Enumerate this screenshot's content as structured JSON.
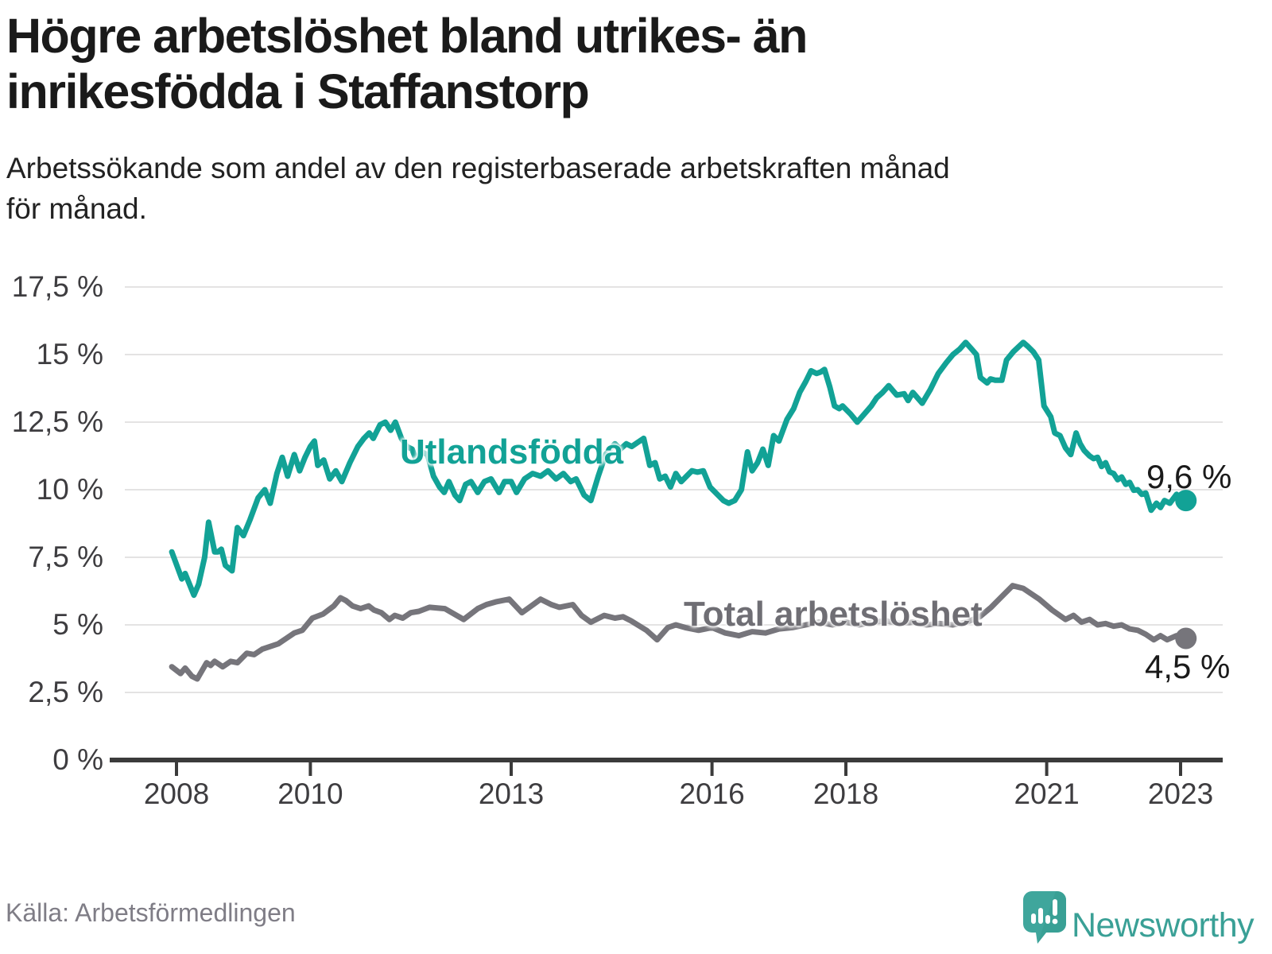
{
  "header": {
    "title": "Högre arbetslöshet bland utrikes- än\ninrikesfödda i Staffanstorp",
    "subtitle": "Arbetssökande som andel av den registerbaserade arbetskraften månad\nför månad."
  },
  "footer": {
    "source": "Källa: Arbetsförmedlingen"
  },
  "logo": {
    "name": "Newsworthy",
    "icon": "newsworthy-speech-bubble-chart-icon",
    "text_color": "#3aa096",
    "icon_color": "#3fa69c"
  },
  "chart_data": {
    "type": "line",
    "x_unit": "decimal_year",
    "y_unit": "percent_of_labour_force",
    "grid": "horizontal",
    "legend_position": "inline-labels",
    "xlim": [
      2007.3,
      2023.6
    ],
    "ylim": [
      0,
      18.5
    ],
    "x_ticks": {
      "values": [
        2008,
        2010,
        2013,
        2016,
        2018,
        2021,
        2023
      ],
      "labels": [
        "2008",
        "2010",
        "2013",
        "2016",
        "2018",
        "2021",
        "2023"
      ]
    },
    "y_ticks": {
      "values": [
        0,
        2.5,
        5,
        7.5,
        10,
        12.5,
        15,
        17.5
      ],
      "labels": [
        "0 %",
        "2,5 %",
        "5 %",
        "7,5 %",
        "10 %",
        "12,5 %",
        "15 %",
        "17,5 %"
      ]
    },
    "series": [
      {
        "name": "Utlandsfödda",
        "color": "#12a296",
        "end_label": "9,6 %",
        "end_value": 9.6,
        "points": [
          [
            2007.93,
            7.7
          ],
          [
            2008.08,
            6.7
          ],
          [
            2008.13,
            6.9
          ],
          [
            2008.26,
            6.1
          ],
          [
            2008.33,
            6.5
          ],
          [
            2008.42,
            7.5
          ],
          [
            2008.48,
            8.8
          ],
          [
            2008.57,
            7.7
          ],
          [
            2008.62,
            7.7
          ],
          [
            2008.67,
            7.8
          ],
          [
            2008.73,
            7.2
          ],
          [
            2008.83,
            7.0
          ],
          [
            2008.91,
            8.6
          ],
          [
            2009.0,
            8.3
          ],
          [
            2009.1,
            8.9
          ],
          [
            2009.22,
            9.7
          ],
          [
            2009.32,
            10.0
          ],
          [
            2009.4,
            9.5
          ],
          [
            2009.5,
            10.6
          ],
          [
            2009.58,
            11.2
          ],
          [
            2009.66,
            10.5
          ],
          [
            2009.76,
            11.3
          ],
          [
            2009.84,
            10.7
          ],
          [
            2009.92,
            11.2
          ],
          [
            2010.0,
            11.6
          ],
          [
            2010.06,
            11.8
          ],
          [
            2010.11,
            10.9
          ],
          [
            2010.2,
            11.1
          ],
          [
            2010.29,
            10.4
          ],
          [
            2010.38,
            10.7
          ],
          [
            2010.47,
            10.3
          ],
          [
            2010.59,
            11.0
          ],
          [
            2010.71,
            11.6
          ],
          [
            2010.8,
            11.9
          ],
          [
            2010.88,
            12.1
          ],
          [
            2010.94,
            11.9
          ],
          [
            2011.04,
            12.4
          ],
          [
            2011.12,
            12.5
          ],
          [
            2011.2,
            12.2
          ],
          [
            2011.27,
            12.5
          ],
          [
            2011.36,
            11.9
          ],
          [
            2011.44,
            11.6
          ],
          [
            2011.52,
            11.5
          ],
          [
            2011.58,
            11.1
          ],
          [
            2011.66,
            11.4
          ],
          [
            2011.75,
            11.3
          ],
          [
            2011.84,
            10.5
          ],
          [
            2011.93,
            10.1
          ],
          [
            2012.0,
            9.9
          ],
          [
            2012.07,
            10.3
          ],
          [
            2012.16,
            9.8
          ],
          [
            2012.23,
            9.6
          ],
          [
            2012.32,
            10.2
          ],
          [
            2012.4,
            10.3
          ],
          [
            2012.5,
            9.9
          ],
          [
            2012.6,
            10.3
          ],
          [
            2012.7,
            10.4
          ],
          [
            2012.82,
            9.9
          ],
          [
            2012.9,
            10.3
          ],
          [
            2013.0,
            10.3
          ],
          [
            2013.08,
            9.9
          ],
          [
            2013.2,
            10.4
          ],
          [
            2013.32,
            10.6
          ],
          [
            2013.44,
            10.5
          ],
          [
            2013.55,
            10.7
          ],
          [
            2013.67,
            10.4
          ],
          [
            2013.78,
            10.6
          ],
          [
            2013.89,
            10.3
          ],
          [
            2013.97,
            10.4
          ],
          [
            2014.09,
            9.8
          ],
          [
            2014.19,
            9.6
          ],
          [
            2014.3,
            10.5
          ],
          [
            2014.41,
            11.3
          ],
          [
            2014.55,
            11.7
          ],
          [
            2014.63,
            11.5
          ],
          [
            2014.72,
            11.7
          ],
          [
            2014.8,
            11.6
          ],
          [
            2014.89,
            11.75
          ],
          [
            2014.98,
            11.9
          ],
          [
            2015.07,
            10.9
          ],
          [
            2015.15,
            11.0
          ],
          [
            2015.22,
            10.4
          ],
          [
            2015.3,
            10.5
          ],
          [
            2015.38,
            10.1
          ],
          [
            2015.46,
            10.6
          ],
          [
            2015.54,
            10.3
          ],
          [
            2015.62,
            10.5
          ],
          [
            2015.7,
            10.7
          ],
          [
            2015.78,
            10.65
          ],
          [
            2015.87,
            10.7
          ],
          [
            2015.97,
            10.1
          ],
          [
            2016.09,
            9.8
          ],
          [
            2016.17,
            9.6
          ],
          [
            2016.25,
            9.5
          ],
          [
            2016.34,
            9.6
          ],
          [
            2016.44,
            10.0
          ],
          [
            2016.53,
            11.4
          ],
          [
            2016.6,
            10.7
          ],
          [
            2016.68,
            11.0
          ],
          [
            2016.76,
            11.5
          ],
          [
            2016.84,
            10.9
          ],
          [
            2016.92,
            12.0
          ],
          [
            2017.0,
            11.8
          ],
          [
            2017.12,
            12.6
          ],
          [
            2017.22,
            13.0
          ],
          [
            2017.31,
            13.6
          ],
          [
            2017.4,
            14.0
          ],
          [
            2017.48,
            14.4
          ],
          [
            2017.56,
            14.3
          ],
          [
            2017.62,
            14.35
          ],
          [
            2017.68,
            14.45
          ],
          [
            2017.76,
            13.8
          ],
          [
            2017.83,
            13.1
          ],
          [
            2017.9,
            13.0
          ],
          [
            2017.95,
            13.1
          ],
          [
            2018.07,
            12.8
          ],
          [
            2018.17,
            12.5
          ],
          [
            2018.31,
            12.9
          ],
          [
            2018.38,
            13.1
          ],
          [
            2018.46,
            13.4
          ],
          [
            2018.55,
            13.6
          ],
          [
            2018.64,
            13.85
          ],
          [
            2018.76,
            13.5
          ],
          [
            2018.87,
            13.55
          ],
          [
            2018.93,
            13.3
          ],
          [
            2019.0,
            13.6
          ],
          [
            2019.07,
            13.4
          ],
          [
            2019.14,
            13.2
          ],
          [
            2019.26,
            13.7
          ],
          [
            2019.38,
            14.3
          ],
          [
            2019.5,
            14.7
          ],
          [
            2019.6,
            15.0
          ],
          [
            2019.7,
            15.2
          ],
          [
            2019.79,
            15.45
          ],
          [
            2019.88,
            15.2
          ],
          [
            2019.95,
            15.0
          ],
          [
            2020.01,
            14.15
          ],
          [
            2020.11,
            13.95
          ],
          [
            2020.16,
            14.1
          ],
          [
            2020.23,
            14.05
          ],
          [
            2020.33,
            14.05
          ],
          [
            2020.4,
            14.8
          ],
          [
            2020.5,
            15.1
          ],
          [
            2020.65,
            15.45
          ],
          [
            2020.72,
            15.3
          ],
          [
            2020.8,
            15.1
          ],
          [
            2020.88,
            14.8
          ],
          [
            2020.96,
            13.1
          ],
          [
            2021.06,
            12.7
          ],
          [
            2021.12,
            12.1
          ],
          [
            2021.2,
            12.0
          ],
          [
            2021.28,
            11.55
          ],
          [
            2021.36,
            11.3
          ],
          [
            2021.44,
            12.1
          ],
          [
            2021.5,
            11.7
          ],
          [
            2021.56,
            11.45
          ],
          [
            2021.64,
            11.25
          ],
          [
            2021.7,
            11.15
          ],
          [
            2021.76,
            11.2
          ],
          [
            2021.82,
            10.86
          ],
          [
            2021.88,
            11.0
          ],
          [
            2021.94,
            10.66
          ],
          [
            2022.0,
            10.6
          ],
          [
            2022.06,
            10.37
          ],
          [
            2022.12,
            10.47
          ],
          [
            2022.18,
            10.2
          ],
          [
            2022.24,
            10.27
          ],
          [
            2022.3,
            9.98
          ],
          [
            2022.36,
            10.0
          ],
          [
            2022.42,
            9.83
          ],
          [
            2022.48,
            9.88
          ],
          [
            2022.56,
            9.24
          ],
          [
            2022.64,
            9.5
          ],
          [
            2022.7,
            9.34
          ],
          [
            2022.76,
            9.6
          ],
          [
            2022.84,
            9.5
          ],
          [
            2022.94,
            9.83
          ],
          [
            2023.0,
            9.45
          ],
          [
            2023.08,
            9.6
          ]
        ]
      },
      {
        "name": "Total arbetslöshet",
        "color": "#76757b",
        "end_label": "4,5 %",
        "end_value": 4.5,
        "points": [
          [
            2007.93,
            3.45
          ],
          [
            2008.06,
            3.2
          ],
          [
            2008.13,
            3.4
          ],
          [
            2008.23,
            3.1
          ],
          [
            2008.31,
            3.0
          ],
          [
            2008.45,
            3.6
          ],
          [
            2008.51,
            3.5
          ],
          [
            2008.57,
            3.65
          ],
          [
            2008.69,
            3.45
          ],
          [
            2008.81,
            3.65
          ],
          [
            2008.91,
            3.6
          ],
          [
            2009.05,
            3.95
          ],
          [
            2009.16,
            3.9
          ],
          [
            2009.28,
            4.1
          ],
          [
            2009.4,
            4.2
          ],
          [
            2009.52,
            4.3
          ],
          [
            2009.64,
            4.5
          ],
          [
            2009.76,
            4.7
          ],
          [
            2009.88,
            4.8
          ],
          [
            2010.03,
            5.25
          ],
          [
            2010.19,
            5.4
          ],
          [
            2010.27,
            5.55
          ],
          [
            2010.35,
            5.7
          ],
          [
            2010.45,
            6.0
          ],
          [
            2010.53,
            5.9
          ],
          [
            2010.63,
            5.7
          ],
          [
            2010.75,
            5.6
          ],
          [
            2010.87,
            5.7
          ],
          [
            2010.95,
            5.55
          ],
          [
            2011.06,
            5.45
          ],
          [
            2011.18,
            5.2
          ],
          [
            2011.26,
            5.35
          ],
          [
            2011.38,
            5.25
          ],
          [
            2011.5,
            5.45
          ],
          [
            2011.62,
            5.5
          ],
          [
            2011.78,
            5.65
          ],
          [
            2012.01,
            5.6
          ],
          [
            2012.29,
            5.2
          ],
          [
            2012.5,
            5.6
          ],
          [
            2012.63,
            5.75
          ],
          [
            2012.77,
            5.85
          ],
          [
            2012.97,
            5.95
          ],
          [
            2013.16,
            5.45
          ],
          [
            2013.3,
            5.7
          ],
          [
            2013.44,
            5.95
          ],
          [
            2013.6,
            5.75
          ],
          [
            2013.72,
            5.65
          ],
          [
            2013.92,
            5.75
          ],
          [
            2014.05,
            5.35
          ],
          [
            2014.19,
            5.1
          ],
          [
            2014.39,
            5.35
          ],
          [
            2014.55,
            5.25
          ],
          [
            2014.67,
            5.3
          ],
          [
            2014.79,
            5.15
          ],
          [
            2015.02,
            4.8
          ],
          [
            2015.18,
            4.45
          ],
          [
            2015.34,
            4.9
          ],
          [
            2015.46,
            5.0
          ],
          [
            2015.6,
            4.9
          ],
          [
            2015.8,
            4.8
          ],
          [
            2016.0,
            4.9
          ],
          [
            2016.2,
            4.7
          ],
          [
            2016.4,
            4.6
          ],
          [
            2016.6,
            4.75
          ],
          [
            2016.8,
            4.7
          ],
          [
            2017.0,
            4.85
          ],
          [
            2017.2,
            4.9
          ],
          [
            2017.4,
            5.0
          ],
          [
            2017.6,
            5.1
          ],
          [
            2017.8,
            5.0
          ],
          [
            2018.0,
            5.1
          ],
          [
            2018.2,
            5.0
          ],
          [
            2018.4,
            5.1
          ],
          [
            2018.6,
            5.15
          ],
          [
            2018.8,
            5.05
          ],
          [
            2019.0,
            5.1
          ],
          [
            2019.2,
            5.0
          ],
          [
            2019.4,
            5.05
          ],
          [
            2019.6,
            5.0
          ],
          [
            2019.8,
            5.1
          ],
          [
            2020.0,
            5.3
          ],
          [
            2020.17,
            5.65
          ],
          [
            2020.29,
            5.95
          ],
          [
            2020.49,
            6.45
          ],
          [
            2020.65,
            6.35
          ],
          [
            2020.89,
            5.95
          ],
          [
            2021.08,
            5.55
          ],
          [
            2021.28,
            5.2
          ],
          [
            2021.4,
            5.35
          ],
          [
            2021.52,
            5.1
          ],
          [
            2021.64,
            5.2
          ],
          [
            2021.76,
            5.0
          ],
          [
            2021.88,
            5.05
          ],
          [
            2022.0,
            4.95
          ],
          [
            2022.12,
            5.0
          ],
          [
            2022.24,
            4.85
          ],
          [
            2022.36,
            4.8
          ],
          [
            2022.48,
            4.65
          ],
          [
            2022.6,
            4.45
          ],
          [
            2022.7,
            4.6
          ],
          [
            2022.8,
            4.45
          ],
          [
            2022.94,
            4.6
          ],
          [
            2023.0,
            4.5
          ],
          [
            2023.08,
            4.5
          ]
        ]
      }
    ]
  }
}
